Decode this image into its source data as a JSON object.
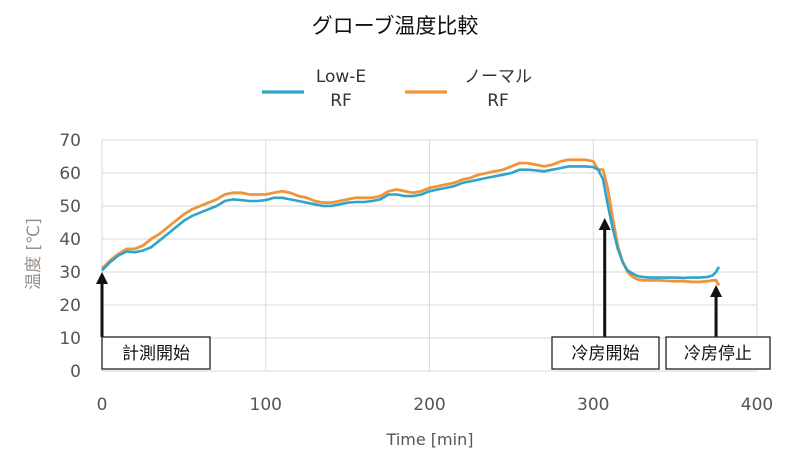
{
  "chart_data": {
    "type": "line",
    "title": "グローブ温度比較",
    "xlabel": "Time [min]",
    "ylabel": "温度 [℃]",
    "xlim": [
      0,
      400
    ],
    "ylim": [
      0,
      70
    ],
    "x_ticks": [
      0,
      100,
      200,
      300,
      400
    ],
    "y_ticks": [
      0,
      10,
      20,
      30,
      40,
      50,
      60,
      70
    ],
    "grid": true,
    "legend": "top-center",
    "series": [
      {
        "name": "Low-E RF",
        "legend_lines": [
          "Low-E",
          "RF"
        ],
        "color": "#2fa3c9",
        "x": [
          0,
          5,
          10,
          15,
          20,
          25,
          30,
          35,
          40,
          45,
          50,
          55,
          60,
          65,
          70,
          75,
          80,
          85,
          90,
          95,
          100,
          105,
          110,
          115,
          120,
          125,
          130,
          135,
          140,
          145,
          150,
          155,
          160,
          165,
          170,
          175,
          180,
          185,
          190,
          195,
          200,
          205,
          210,
          215,
          220,
          225,
          230,
          235,
          240,
          245,
          250,
          255,
          260,
          265,
          270,
          275,
          280,
          285,
          290,
          295,
          300,
          303,
          306,
          309,
          312,
          315,
          318,
          321,
          324,
          327,
          330,
          335,
          340,
          345,
          350,
          355,
          360,
          365,
          370,
          373,
          375,
          376,
          377
        ],
        "values": [
          30.5,
          33,
          35,
          36.2,
          36,
          36.5,
          37.5,
          39.5,
          41.5,
          43.5,
          45.5,
          47,
          48,
          49,
          50,
          51.5,
          52,
          51.8,
          51.5,
          51.5,
          51.8,
          52.5,
          52.5,
          52,
          51.5,
          51,
          50.5,
          50,
          50,
          50.5,
          51,
          51.2,
          51.2,
          51.5,
          52,
          53.5,
          53.5,
          53,
          53,
          53.5,
          54.5,
          55,
          55.5,
          56,
          57,
          57.5,
          58,
          58.5,
          59,
          59.5,
          60,
          61,
          61,
          60.8,
          60.5,
          61,
          61.5,
          62,
          62,
          62,
          61.8,
          61,
          58,
          50,
          43,
          37,
          33,
          30.5,
          29.5,
          28.8,
          28.5,
          28.3,
          28.3,
          28.3,
          28.3,
          28.2,
          28.3,
          28.3,
          28.5,
          29,
          30,
          31,
          31.5
        ]
      },
      {
        "name": "ノーマル RF",
        "legend_lines": [
          "ノーマル",
          "RF"
        ],
        "color": "#f0943c",
        "x": [
          0,
          5,
          10,
          15,
          20,
          25,
          30,
          35,
          40,
          45,
          50,
          55,
          60,
          65,
          70,
          75,
          80,
          85,
          90,
          95,
          100,
          105,
          110,
          115,
          120,
          125,
          130,
          135,
          140,
          145,
          150,
          155,
          160,
          165,
          170,
          175,
          180,
          185,
          190,
          195,
          200,
          205,
          210,
          215,
          220,
          225,
          230,
          235,
          240,
          245,
          250,
          255,
          260,
          265,
          270,
          275,
          280,
          285,
          290,
          295,
          300,
          303,
          306,
          309,
          312,
          315,
          318,
          321,
          324,
          327,
          330,
          335,
          340,
          345,
          350,
          355,
          360,
          365,
          370,
          373,
          375,
          376,
          377
        ],
        "values": [
          31,
          33.5,
          35.5,
          37,
          37,
          38,
          40,
          41.5,
          43.5,
          45.5,
          47.5,
          49,
          50,
          51,
          52,
          53.5,
          54,
          54,
          53.5,
          53.5,
          53.5,
          54,
          54.5,
          54,
          53,
          52.5,
          51.5,
          51,
          51,
          51.5,
          52,
          52.5,
          52.5,
          52.5,
          53,
          54.5,
          55,
          54.5,
          54,
          54.5,
          55.5,
          56,
          56.5,
          57,
          58,
          58.5,
          59.5,
          60,
          60.5,
          61,
          62,
          63,
          63,
          62.5,
          62,
          62.5,
          63.5,
          64,
          64,
          64,
          63.5,
          61,
          61,
          55,
          46,
          38,
          33,
          30,
          28.5,
          27.8,
          27.5,
          27.5,
          27.5,
          27.3,
          27.2,
          27.2,
          27,
          27,
          27.2,
          27.5,
          27.5,
          26.5,
          26
        ]
      }
    ],
    "annotations": [
      {
        "text": "計測開始",
        "x": 0,
        "y": 30
      },
      {
        "text": "冷房開始",
        "x": 307,
        "y": 46
      },
      {
        "text": "冷房停止",
        "x": 375,
        "y": 26
      }
    ]
  }
}
